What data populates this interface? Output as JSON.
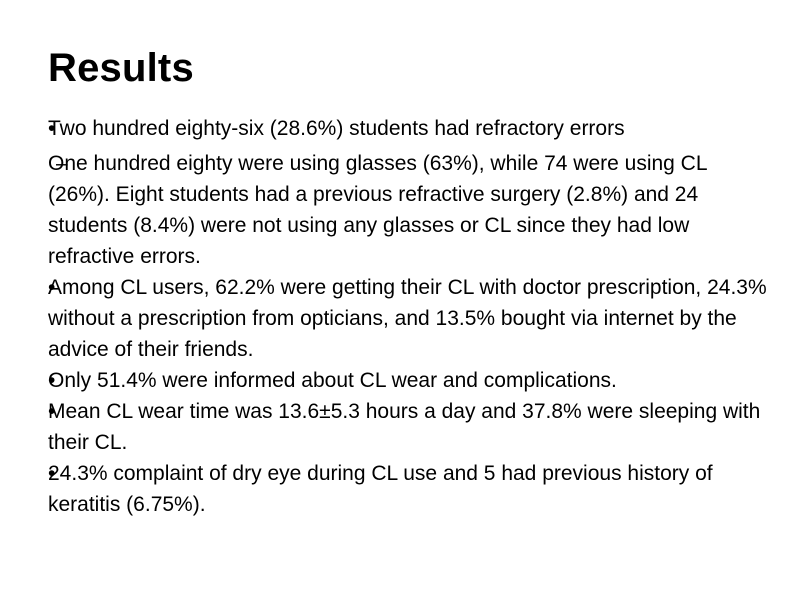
{
  "slide": {
    "title": "Results",
    "bullet_marker": "•",
    "sub_marker": "–",
    "bullets": [
      {
        "text": "Two hundred eighty-six (28.6%) students had refractory errors",
        "sub": "One hundred eighty were using glasses (63%), while 74 were using CL (26%). Eight students had a previous refractive surgery (2.8%) and 24 students (8.4%) were not using any glasses or CL since they had low refractive errors."
      },
      {
        "text": "Among CL users, 62.2% were getting their CL with doctor prescription, 24.3% without a prescription from opticians, and 13.5% bought via internet by the advice of their friends."
      },
      {
        "text": "Only 51.4% were informed about CL wear and complications."
      },
      {
        "text": "Mean CL wear time was 13.6±5.3 hours a day and 37.8% were sleeping with their CL."
      },
      {
        "text": "24.3% complaint of dry eye during CL use and 5 had previous history of keratitis (6.75%)."
      }
    ]
  }
}
